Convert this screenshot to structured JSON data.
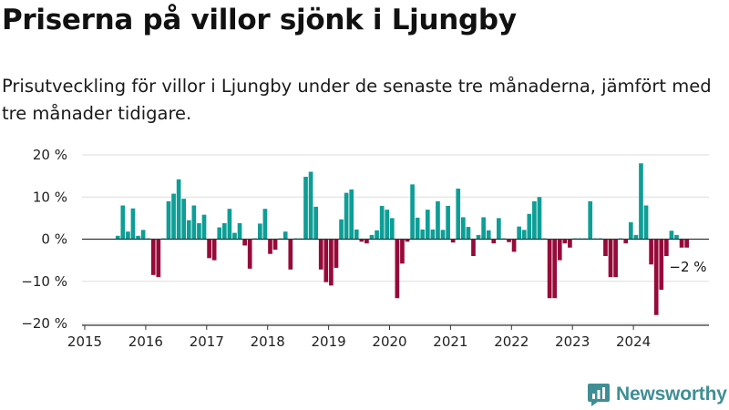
{
  "header": {
    "title": "Priserna på villor sjönk i Ljungby",
    "subtitle": "Prisutveckling för villor i Ljungby under de senaste tre månaderna, jämfört med tre månader tidigare."
  },
  "colors": {
    "positive": "#0d9e96",
    "negative": "#960a3a",
    "axis": "#333333",
    "grid": "#dddddd",
    "brand": "#3f8e95"
  },
  "brand": {
    "name": "Newsworthy",
    "icon": "newsworthy-logo-icon"
  },
  "chart_data": {
    "type": "bar",
    "title": "",
    "xlabel": "",
    "ylabel": "",
    "x_start": "2015-01",
    "x_ticks": [
      "2015",
      "2016",
      "2017",
      "2018",
      "2019",
      "2020",
      "2021",
      "2022",
      "2023",
      "2024"
    ],
    "y_ticks": [
      "20 %",
      "10 %",
      "0 %",
      "−10 %",
      "−20 %"
    ],
    "ylim": [
      -20,
      20
    ],
    "grid": true,
    "legend": "none",
    "values": [
      null,
      null,
      null,
      null,
      null,
      null,
      0.8,
      8.0,
      1.8,
      7.3,
      0.8,
      2.2,
      0.2,
      -8.5,
      -9.0,
      0.2,
      9.0,
      10.8,
      14.2,
      9.6,
      4.5,
      8.0,
      3.8,
      5.8,
      -4.5,
      -5.0,
      2.8,
      3.8,
      7.2,
      1.5,
      3.8,
      -1.5,
      -7.0,
      0.2,
      3.7,
      7.2,
      -3.5,
      -2.5,
      0.2,
      1.8,
      -7.2,
      0.2,
      0.2,
      14.8,
      16.0,
      7.7,
      -7.2,
      -10.2,
      -11.0,
      -6.8,
      4.7,
      11.0,
      11.8,
      2.3,
      -0.6,
      -1.0,
      1.0,
      2.1,
      7.9,
      7.0,
      5.0,
      -14.0,
      -5.8,
      -0.6,
      13.0,
      5.1,
      2.3,
      7.0,
      2.3,
      9.0,
      2.2,
      7.9,
      -0.8,
      12.0,
      5.2,
      2.9,
      -4.0,
      1.0,
      5.2,
      2.1,
      -1.0,
      5.0,
      0.2,
      -0.7,
      -3.0,
      3.0,
      2.2,
      6.0,
      9.0,
      10.0,
      0.2,
      -14.0,
      -14.0,
      -5.0,
      -1.0,
      -2.0,
      0.2,
      0.2,
      0.2,
      9.0,
      0.2,
      0.2,
      -4.0,
      -9.0,
      -9.0,
      0.2,
      -1.0,
      4.0,
      1.0,
      18.0,
      8.0,
      -6.0,
      -18.0,
      -12.0,
      -4.0,
      2.0,
      1.0,
      -2.0,
      -2.0,
      null
    ],
    "annotations": [
      {
        "text": "−2 %"
      }
    ]
  }
}
